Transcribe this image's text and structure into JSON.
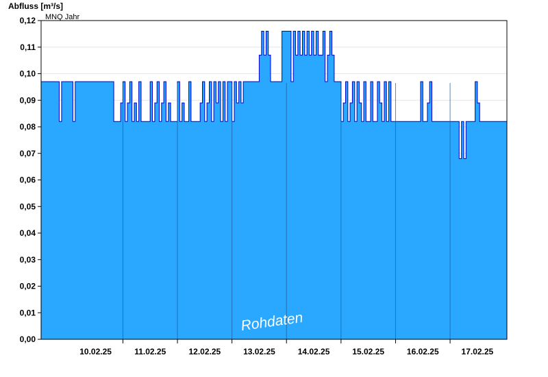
{
  "chart_data": {
    "type": "area",
    "title": "",
    "ylabel": "Abfluss [m³/s]",
    "xlabel": "",
    "ylim": [
      0,
      0.12
    ],
    "xlim": [
      "2025-02-09T12:00",
      "2025-02-18T01:00"
    ],
    "yticks": [
      {
        "value": 0.0,
        "label": "0,00"
      },
      {
        "value": 0.01,
        "label": "0,01"
      },
      {
        "value": 0.02,
        "label": "0,02"
      },
      {
        "value": 0.03,
        "label": "0,03"
      },
      {
        "value": 0.04,
        "label": "0,04"
      },
      {
        "value": 0.05,
        "label": "0,05"
      },
      {
        "value": 0.06,
        "label": "0,06"
      },
      {
        "value": 0.07,
        "label": "0,07"
      },
      {
        "value": 0.08,
        "label": "0,08"
      },
      {
        "value": 0.09,
        "label": "0,09"
      },
      {
        "value": 0.1,
        "label": "0,10"
      },
      {
        "value": 0.11,
        "label": "0,11"
      },
      {
        "value": 0.12,
        "label": "0,12"
      }
    ],
    "xticks": [
      {
        "value": "2025-02-10T12:00",
        "label": "10.02.25"
      },
      {
        "value": "2025-02-11T12:00",
        "label": "11.02.25"
      },
      {
        "value": "2025-02-12T12:00",
        "label": "12.02.25"
      },
      {
        "value": "2025-02-13T12:00",
        "label": "13.02.25"
      },
      {
        "value": "2025-02-14T12:00",
        "label": "14.02.25"
      },
      {
        "value": "2025-02-15T12:00",
        "label": "15.02.25"
      },
      {
        "value": "2025-02-16T12:00",
        "label": "16.02.25"
      },
      {
        "value": "2025-02-17T12:00",
        "label": "17.02.25"
      }
    ],
    "day_boundaries": [
      "2025-02-11T00:00",
      "2025-02-12T00:00",
      "2025-02-13T00:00",
      "2025-02-14T00:00",
      "2025-02-15T00:00",
      "2025-02-16T00:00",
      "2025-02-17T00:00"
    ],
    "reference_line": {
      "label": "MNQ Jahr"
    },
    "watermark": "Rohdaten",
    "series": [
      {
        "values": [
          [
            "2025-02-09T12:00",
            0.097
          ],
          [
            "2025-02-09T20:00",
            0.082
          ],
          [
            "2025-02-09T21:00",
            0.097
          ],
          [
            "2025-02-10T02:00",
            0.082
          ],
          [
            "2025-02-10T03:00",
            0.097
          ],
          [
            "2025-02-10T20:00",
            0.082
          ],
          [
            "2025-02-10T22:00",
            0.082
          ],
          [
            "2025-02-10T23:00",
            0.089
          ],
          [
            "2025-02-11T00:00",
            0.097
          ],
          [
            "2025-02-11T01:00",
            0.082
          ],
          [
            "2025-02-11T02:00",
            0.089
          ],
          [
            "2025-02-11T03:00",
            0.097
          ],
          [
            "2025-02-11T04:00",
            0.082
          ],
          [
            "2025-02-11T05:00",
            0.089
          ],
          [
            "2025-02-11T06:00",
            0.082
          ],
          [
            "2025-02-11T07:00",
            0.097
          ],
          [
            "2025-02-11T08:00",
            0.082
          ],
          [
            "2025-02-11T11:00",
            0.082
          ],
          [
            "2025-02-11T12:00",
            0.097
          ],
          [
            "2025-02-11T13:00",
            0.082
          ],
          [
            "2025-02-11T14:00",
            0.089
          ],
          [
            "2025-02-11T15:00",
            0.097
          ],
          [
            "2025-02-11T16:00",
            0.082
          ],
          [
            "2025-02-11T17:00",
            0.089
          ],
          [
            "2025-02-11T18:00",
            0.097
          ],
          [
            "2025-02-11T19:00",
            0.082
          ],
          [
            "2025-02-11T20:00",
            0.089
          ],
          [
            "2025-02-11T21:00",
            0.082
          ],
          [
            "2025-02-12T00:00",
            0.097
          ],
          [
            "2025-02-12T01:00",
            0.082
          ],
          [
            "2025-02-12T02:00",
            0.089
          ],
          [
            "2025-02-12T03:00",
            0.082
          ],
          [
            "2025-02-12T05:00",
            0.097
          ],
          [
            "2025-02-12T06:00",
            0.082
          ],
          [
            "2025-02-12T09:00",
            0.082
          ],
          [
            "2025-02-12T10:00",
            0.089
          ],
          [
            "2025-02-12T11:00",
            0.097
          ],
          [
            "2025-02-12T12:00",
            0.082
          ],
          [
            "2025-02-12T13:00",
            0.089
          ],
          [
            "2025-02-12T14:00",
            0.097
          ],
          [
            "2025-02-12T15:00",
            0.082
          ],
          [
            "2025-02-12T16:00",
            0.097
          ],
          [
            "2025-02-12T17:00",
            0.089
          ],
          [
            "2025-02-12T18:00",
            0.097
          ],
          [
            "2025-02-12T19:00",
            0.082
          ],
          [
            "2025-02-12T20:00",
            0.097
          ],
          [
            "2025-02-12T21:00",
            0.082
          ],
          [
            "2025-02-12T22:00",
            0.097
          ],
          [
            "2025-02-13T00:00",
            0.082
          ],
          [
            "2025-02-13T01:00",
            0.097
          ],
          [
            "2025-02-13T02:00",
            0.089
          ],
          [
            "2025-02-13T03:00",
            0.097
          ],
          [
            "2025-02-13T04:00",
            0.089
          ],
          [
            "2025-02-13T05:00",
            0.097
          ],
          [
            "2025-02-13T12:00",
            0.107
          ],
          [
            "2025-02-13T13:00",
            0.116
          ],
          [
            "2025-02-13T14:00",
            0.107
          ],
          [
            "2025-02-13T15:00",
            0.116
          ],
          [
            "2025-02-13T16:00",
            0.107
          ],
          [
            "2025-02-13T17:00",
            0.097
          ],
          [
            "2025-02-13T22:00",
            0.116
          ],
          [
            "2025-02-14T02:00",
            0.097
          ],
          [
            "2025-02-14T03:00",
            0.116
          ],
          [
            "2025-02-14T04:00",
            0.107
          ],
          [
            "2025-02-14T05:00",
            0.116
          ],
          [
            "2025-02-14T06:00",
            0.107
          ],
          [
            "2025-02-14T07:00",
            0.116
          ],
          [
            "2025-02-14T08:00",
            0.107
          ],
          [
            "2025-02-14T09:00",
            0.116
          ],
          [
            "2025-02-14T10:00",
            0.107
          ],
          [
            "2025-02-14T11:00",
            0.116
          ],
          [
            "2025-02-14T12:00",
            0.107
          ],
          [
            "2025-02-14T13:00",
            0.116
          ],
          [
            "2025-02-14T14:00",
            0.107
          ],
          [
            "2025-02-14T16:00",
            0.116
          ],
          [
            "2025-02-14T17:00",
            0.097
          ],
          [
            "2025-02-14T18:00",
            0.107
          ],
          [
            "2025-02-14T19:00",
            0.116
          ],
          [
            "2025-02-14T20:00",
            0.107
          ],
          [
            "2025-02-14T21:00",
            0.097
          ],
          [
            "2025-02-15T00:00",
            0.082
          ],
          [
            "2025-02-15T01:00",
            0.089
          ],
          [
            "2025-02-15T02:00",
            0.097
          ],
          [
            "2025-02-15T03:00",
            0.082
          ],
          [
            "2025-02-15T04:00",
            0.089
          ],
          [
            "2025-02-15T05:00",
            0.097
          ],
          [
            "2025-02-15T06:00",
            0.082
          ],
          [
            "2025-02-15T07:00",
            0.097
          ],
          [
            "2025-02-15T08:00",
            0.089
          ],
          [
            "2025-02-15T09:00",
            0.082
          ],
          [
            "2025-02-15T10:00",
            0.097
          ],
          [
            "2025-02-15T11:00",
            0.082
          ],
          [
            "2025-02-15T13:00",
            0.097
          ],
          [
            "2025-02-15T14:00",
            0.082
          ],
          [
            "2025-02-15T16:00",
            0.097
          ],
          [
            "2025-02-15T17:00",
            0.089
          ],
          [
            "2025-02-15T18:00",
            0.082
          ],
          [
            "2025-02-15T19:00",
            0.097
          ],
          [
            "2025-02-15T20:00",
            0.082
          ],
          [
            "2025-02-15T21:00",
            0.097
          ],
          [
            "2025-02-15T22:00",
            0.082
          ],
          [
            "2025-02-16T10:00",
            0.082
          ],
          [
            "2025-02-16T11:00",
            0.097
          ],
          [
            "2025-02-16T12:00",
            0.082
          ],
          [
            "2025-02-16T14:00",
            0.089
          ],
          [
            "2025-02-16T15:00",
            0.097
          ],
          [
            "2025-02-16T16:00",
            0.082
          ],
          [
            "2025-02-17T03:00",
            0.082
          ],
          [
            "2025-02-17T04:00",
            0.068
          ],
          [
            "2025-02-17T05:00",
            0.082
          ],
          [
            "2025-02-17T06:00",
            0.068
          ],
          [
            "2025-02-17T07:00",
            0.082
          ],
          [
            "2025-02-17T10:00",
            0.082
          ],
          [
            "2025-02-17T11:00",
            0.097
          ],
          [
            "2025-02-17T12:00",
            0.089
          ],
          [
            "2025-02-17T13:00",
            0.082
          ],
          [
            "2025-02-18T01:00",
            0.082
          ]
        ]
      }
    ],
    "grid": true,
    "fill_color": "#2aa7ff",
    "line_color": "#0000cc"
  }
}
